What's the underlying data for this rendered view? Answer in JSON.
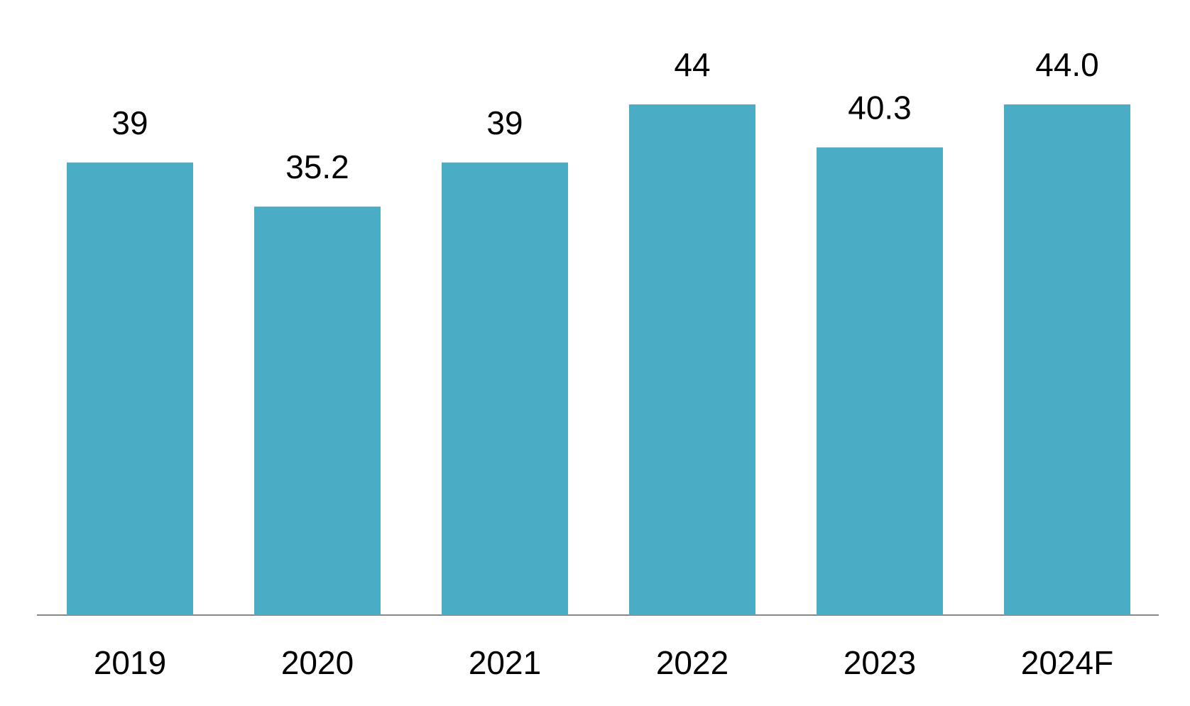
{
  "chart_data": {
    "type": "bar",
    "categories": [
      "2019",
      "2020",
      "2021",
      "2022",
      "2023",
      "2024F"
    ],
    "values": [
      39,
      35.2,
      39,
      44,
      40.3,
      44.0
    ],
    "value_labels": [
      "39",
      "35.2",
      "39",
      "44",
      "40.3",
      "44.0"
    ],
    "color": "#4bacc6"
  }
}
